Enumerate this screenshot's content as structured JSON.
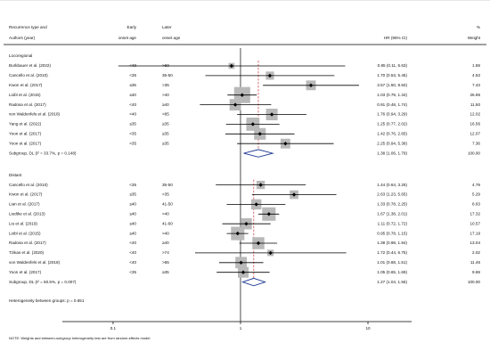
{
  "chart_data": {
    "type": "forest",
    "headers": {
      "label_line1": "Recurrence type and",
      "label_line2": "Authors (year)",
      "early_line1": "Early",
      "early_line2": "onset age",
      "later_line1": "Later",
      "later_line2": "onset age",
      "ci": "HR (95% CI)",
      "weight_line1": "%",
      "weight_line2": "Weight"
    },
    "x_scale": "log",
    "xlim": [
      0.04,
      22
    ],
    "x_ticks": [
      {
        "value": 0.1,
        "label": "0.1"
      },
      {
        "value": 1,
        "label": "1"
      },
      {
        "value": 10,
        "label": "10"
      }
    ],
    "groups": [
      {
        "title": "Locoregional",
        "studies": [
          {
            "author": "Burkbauer et al. (2022)",
            "early": "<40",
            "later": ">60",
            "hr": 0.85,
            "lo": 0.11,
            "hi": 6.63,
            "ci_text": "0.85 (0.11, 6.63)",
            "weight": "1.59"
          },
          {
            "author": "Cancello et al. (2010)",
            "early": "<35",
            "later": "35-50",
            "hr": 1.7,
            "lo": 0.53,
            "hi": 5.45,
            "ci_text": "1.70 (0.53, 5.45)",
            "weight": "4.53"
          },
          {
            "author": "Kwon et al. (2017)",
            "early": "≤35",
            "later": ">35",
            "hr": 3.57,
            "lo": 1.5,
            "hi": 8.5,
            "ci_text": "3.57 (1.50, 8.50)",
            "weight": "7.43"
          },
          {
            "author": "Loibl et al. (2015)",
            "early": "≤40",
            "later": ">40",
            "hr": 1.03,
            "lo": 0.79,
            "hi": 1.34,
            "ci_text": "1.03 (0.79, 1.34)",
            "weight": "26.95"
          },
          {
            "author": "Radosa et al. (2017)",
            "early": "<40",
            "later": "≥40",
            "hr": 0.91,
            "lo": 0.48,
            "hi": 1.74,
            "ci_text": "0.91 (0.48, 1.74)",
            "weight": "11.50"
          },
          {
            "author": "von Waldenfels et al. (2018)",
            "early": "<40",
            "later": ">65",
            "hr": 1.76,
            "lo": 0.94,
            "hi": 3.29,
            "ci_text": "1.76 (0.94, 3.29)",
            "weight": "12.02"
          },
          {
            "author": "Yang et al. (2022)",
            "early": "≤35",
            "later": "≥35",
            "hr": 1.25,
            "lo": 0.77,
            "hi": 2.02,
            "ci_text": "1.25 (0.77, 2.02)",
            "weight": "16.56"
          },
          {
            "author": "Yoon et al. (2017)",
            "early": "<35",
            "later": "≥35",
            "hr": 1.42,
            "lo": 0.76,
            "hi": 2.65,
            "ci_text": "1.42 (0.76, 2.65)",
            "weight": "12.07"
          },
          {
            "author": "Yoon et al. (2017)",
            "early": "<35",
            "later": "≥35",
            "hr": 2.25,
            "lo": 0.94,
            "hi": 5.38,
            "ci_text": "2.25 (0.94, 5.38)",
            "weight": "7.36"
          }
        ],
        "subgroup": {
          "label": "Subgroup, DL (I² = 33.7%, p = 0.148)",
          "hr": 1.38,
          "lo": 1.06,
          "hi": 1.79,
          "ci_text": "1.38 (1.06, 1.79)",
          "weight": "100.00"
        }
      },
      {
        "title": "Distant",
        "studies": [
          {
            "author": "Cancello et al. (2010)",
            "early": "<35",
            "later": "35-50",
            "hr": 1.44,
            "lo": 0.64,
            "hi": 3.25,
            "ci_text": "1.44 (0.64, 3.25)",
            "weight": "4.79"
          },
          {
            "author": "Kwon et al. (2017)",
            "early": "≤35",
            "later": ">35",
            "hr": 2.63,
            "lo": 1.23,
            "hi": 5.65,
            "ci_text": "2.63 (1.23, 5.65)",
            "weight": "5.29"
          },
          {
            "author": "Lian et al. (2017)",
            "early": "≤40",
            "later": "41-50",
            "hr": 1.33,
            "lo": 0.78,
            "hi": 2.25,
            "ci_text": "1.33 (0.78, 2.25)",
            "weight": "8.63"
          },
          {
            "author": "Liedtke et al. (2013)",
            "early": "≤40",
            "later": ">40",
            "hr": 1.67,
            "lo": 1.38,
            "hi": 2.01,
            "ci_text": "1.67 (1.38, 2.01)",
            "weight": "17.32"
          },
          {
            "author": "Liu et al. (2019)",
            "early": "≤40",
            "later": "41-60",
            "hr": 1.11,
            "lo": 0.72,
            "hi": 1.72,
            "ci_text": "1.11 (0.72, 1.72)",
            "weight": "10.57"
          },
          {
            "author": "Loibl et al. (2015)",
            "early": "≤40",
            "later": ">40",
            "hr": 0.95,
            "lo": 0.78,
            "hi": 1.15,
            "ci_text": "0.95 (0.78, 1.15)",
            "weight": "17.19"
          },
          {
            "author": "Radosa et al. (2017)",
            "early": "<40",
            "later": "≥40",
            "hr": 1.38,
            "lo": 0.98,
            "hi": 1.94,
            "ci_text": "1.38 (0.98, 1.94)",
            "weight": "13.04"
          },
          {
            "author": "Tzikas et al. (2020)",
            "early": "<40",
            "later": ">74",
            "hr": 1.72,
            "lo": 0.44,
            "hi": 6.75,
            "ci_text": "1.72 (0.44, 6.75)",
            "weight": "2.02"
          },
          {
            "author": "von Waldenfels et al. (2018)",
            "early": "<40",
            "later": ">65",
            "hr": 1.01,
            "lo": 0.68,
            "hi": 1.51,
            "ci_text": "1.01 (0.68, 1.51)",
            "weight": "11.46"
          },
          {
            "author": "Yoon et al. (2017)",
            "early": "<35",
            "later": "≥35",
            "hr": 1.05,
            "lo": 0.65,
            "hi": 1.69,
            "ci_text": "1.05 (0.65, 1.69)",
            "weight": "9.69"
          }
        ],
        "subgroup": {
          "label": "Subgroup, DL (I² = 60.5%, p = 0.007)",
          "hr": 1.27,
          "lo": 1.04,
          "hi": 1.56,
          "ci_text": "1.27 (1.04, 1.56)",
          "weight": "100.00"
        }
      }
    ],
    "heterogeneity": "Heterogeneity between groups: p = 0.651",
    "note": "NOTE: Weights and between-subgroup heterogeneity test are from random-effects model"
  }
}
